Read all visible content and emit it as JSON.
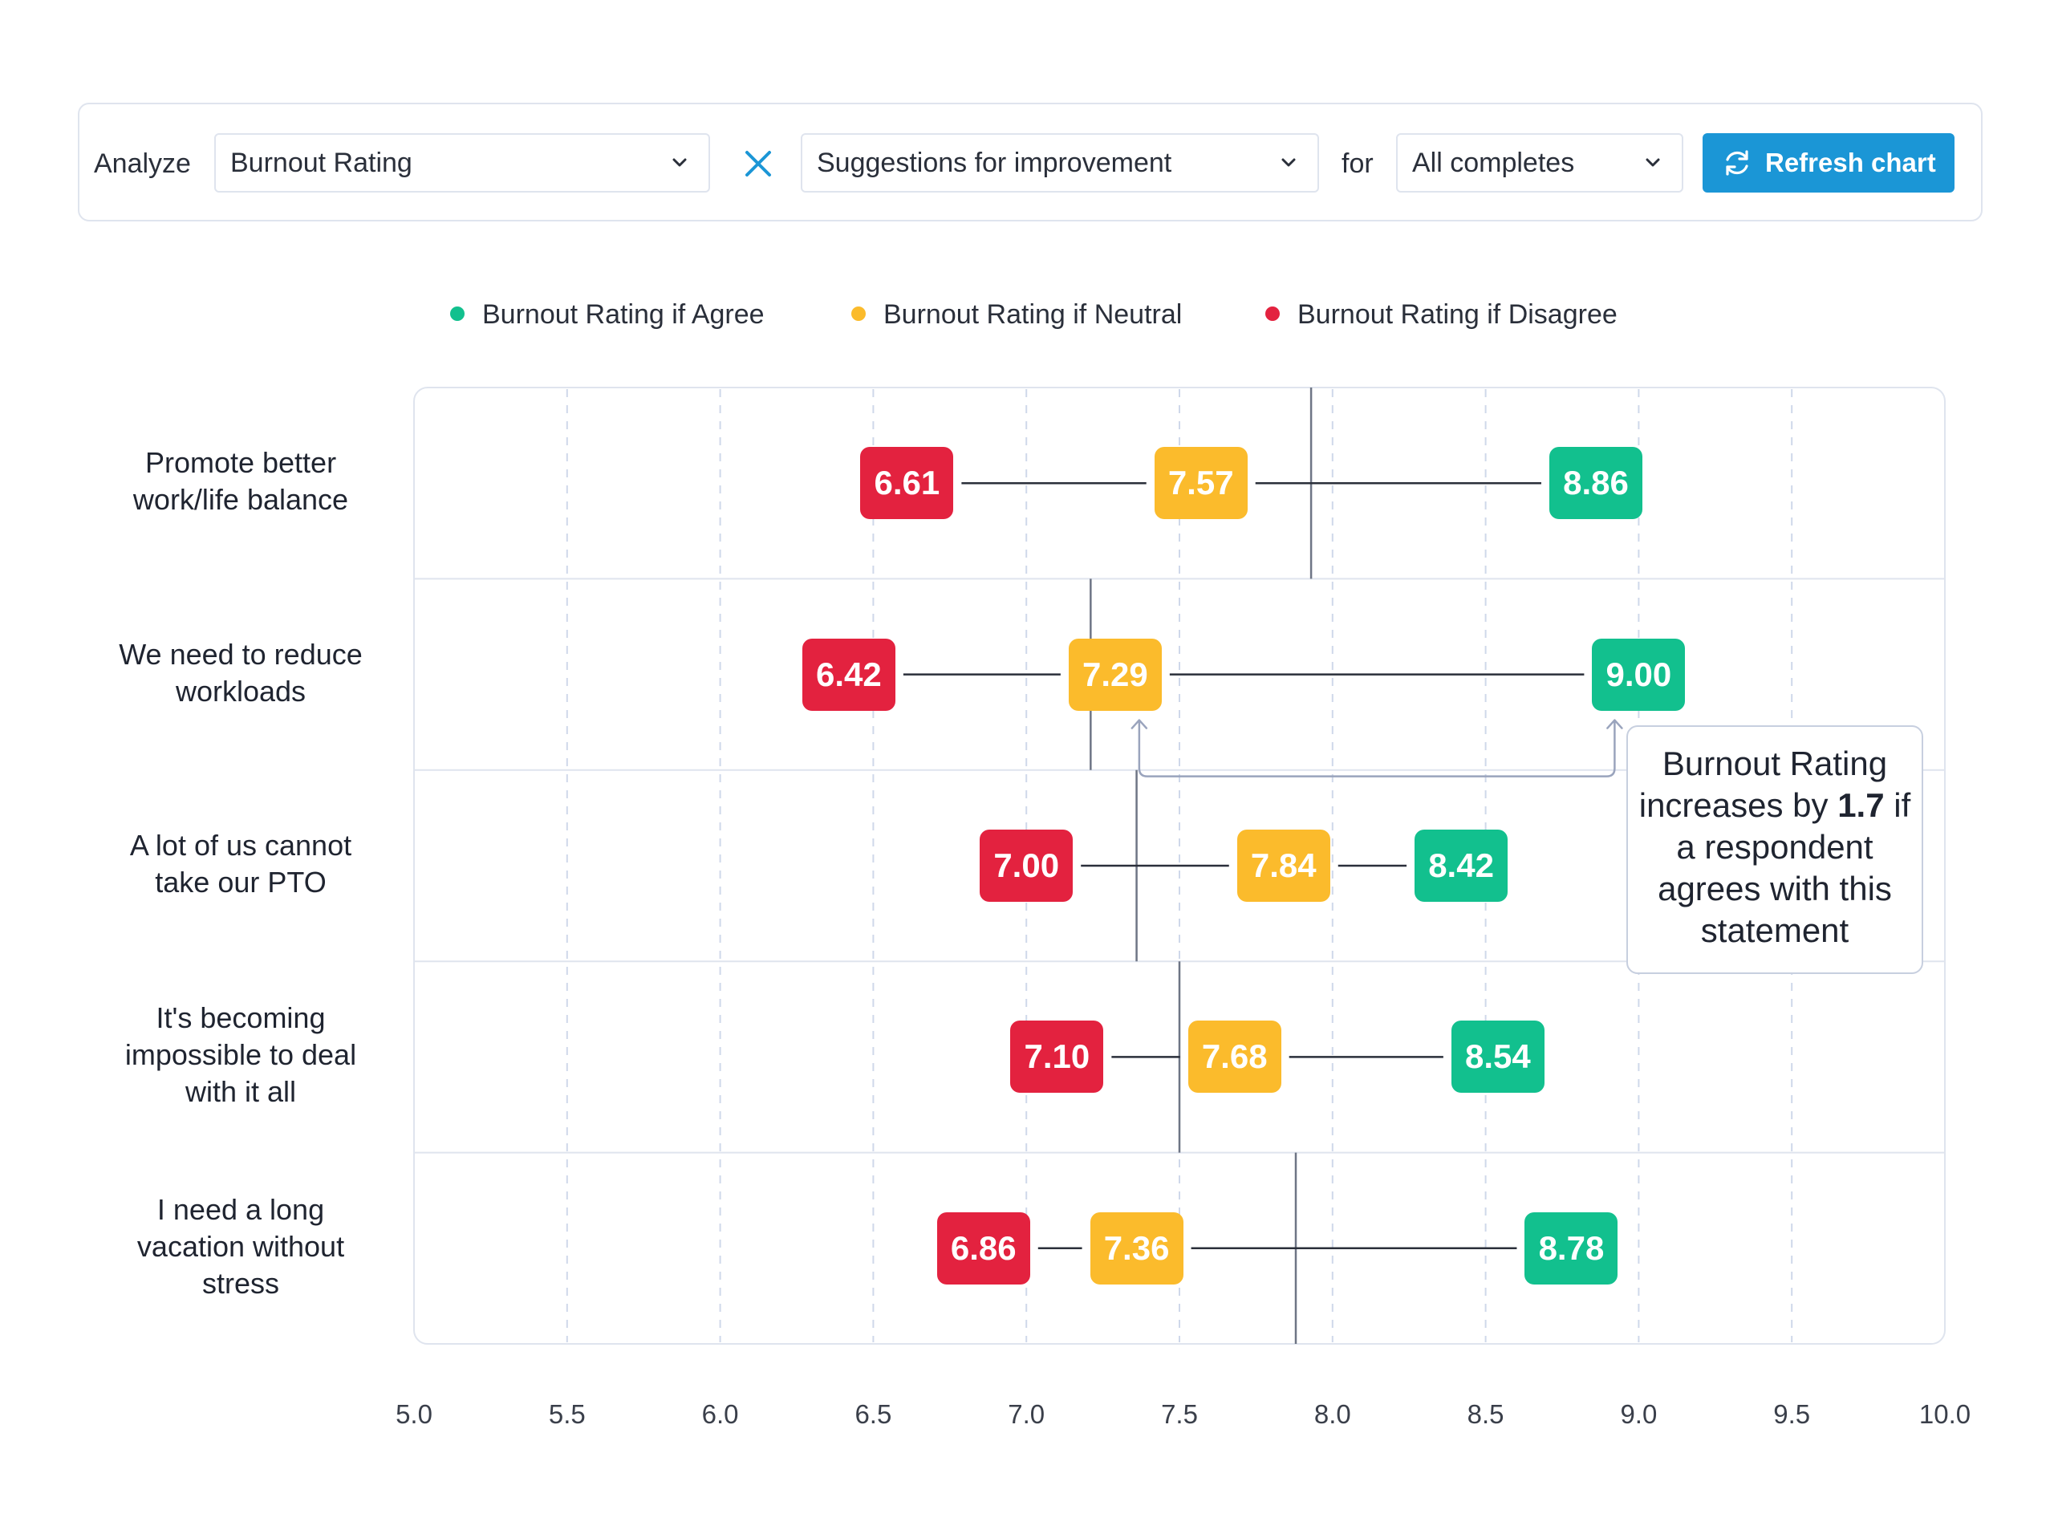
{
  "toolbar": {
    "analyze_label": "Analyze",
    "metric_value": "Burnout Rating",
    "segment_value": "Suggestions for improvement",
    "for_label": "for",
    "filter_value": "All completes",
    "refresh_label": "Refresh chart"
  },
  "colors": {
    "agree": "#12c08e",
    "neutral": "#fbbb2c",
    "disagree": "#e3223f",
    "accent": "#1b96d6"
  },
  "chart_data": {
    "type": "dumbbell",
    "x_ticks": [
      "5.0",
      "5.5",
      "6.0",
      "6.5",
      "7.0",
      "7.5",
      "8.0",
      "8.5",
      "9.0",
      "9.5",
      "10.0"
    ],
    "xlim": [
      5.0,
      10.0
    ],
    "grid": true,
    "legend_position": "top",
    "series": [
      {
        "name": "Burnout Rating if Agree",
        "key": "agree"
      },
      {
        "name": "Burnout Rating if Neutral",
        "key": "neutral"
      },
      {
        "name": "Burnout Rating if Disagree",
        "key": "disagree"
      }
    ],
    "categories": [
      {
        "label_lines": [
          "Promote better",
          "work/life balance"
        ],
        "disagree": "6.61",
        "neutral": "7.57",
        "agree": "8.86",
        "average": 7.93
      },
      {
        "label_lines": [
          "We need to reduce",
          "workloads"
        ],
        "disagree": "6.42",
        "neutral": "7.29",
        "agree": "9.00",
        "average": 7.21
      },
      {
        "label_lines": [
          "A lot of us cannot",
          "take our PTO"
        ],
        "disagree": "7.00",
        "neutral": "7.84",
        "agree": "8.42",
        "average": 7.36
      },
      {
        "label_lines": [
          "It's becoming",
          "impossible to deal",
          "with it all"
        ],
        "disagree": "7.10",
        "neutral": "7.68",
        "agree": "8.54",
        "average": 7.5
      },
      {
        "label_lines": [
          "I need a long",
          "vacation without",
          "stress"
        ],
        "disagree": "6.86",
        "neutral": "7.36",
        "agree": "8.78",
        "average": 7.88
      }
    ],
    "annotation": {
      "category_index": 1,
      "pre": "Burnout Rating increases by ",
      "value": "1.7",
      "post": " if a respondent agrees with this statement"
    }
  }
}
